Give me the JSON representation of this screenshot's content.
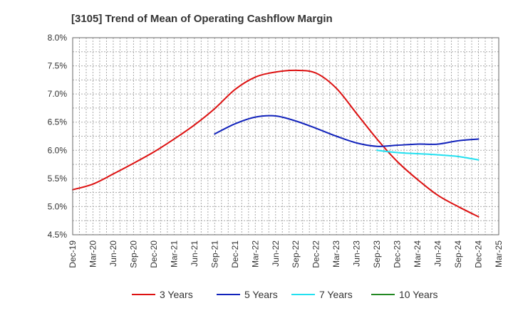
{
  "chart_data": {
    "type": "line",
    "title": "[3105]  Trend of Mean of Operating Cashflow Margin",
    "xlabel": "",
    "ylabel": "",
    "ylim": [
      4.5,
      8.0
    ],
    "y_ticks": [
      "4.5%",
      "5.0%",
      "5.5%",
      "6.0%",
      "6.5%",
      "7.0%",
      "7.5%",
      "8.0%"
    ],
    "y_tick_values": [
      4.5,
      5.0,
      5.5,
      6.0,
      6.5,
      7.0,
      7.5,
      8.0
    ],
    "categories": [
      "Dec-19",
      "Mar-20",
      "Jun-20",
      "Sep-20",
      "Dec-20",
      "Mar-21",
      "Jun-21",
      "Sep-21",
      "Dec-21",
      "Mar-22",
      "Jun-22",
      "Sep-22",
      "Dec-22",
      "Mar-23",
      "Jun-23",
      "Sep-23",
      "Dec-23",
      "Mar-24",
      "Jun-24",
      "Sep-24",
      "Dec-24",
      "Mar-25"
    ],
    "grid": true,
    "legend_position": "bottom",
    "series": [
      {
        "name": "3 Years",
        "color": "#dd1111",
        "values": [
          5.3,
          5.4,
          5.58,
          5.77,
          5.97,
          6.2,
          6.45,
          6.74,
          7.08,
          7.3,
          7.39,
          7.42,
          7.37,
          7.1,
          6.65,
          6.2,
          5.8,
          5.48,
          5.2,
          5.0,
          4.82,
          null
        ]
      },
      {
        "name": "5 Years",
        "color": "#1122bb",
        "values": [
          null,
          null,
          null,
          null,
          null,
          null,
          null,
          6.29,
          6.47,
          6.59,
          6.61,
          6.52,
          6.39,
          6.25,
          6.13,
          6.07,
          6.09,
          6.11,
          6.11,
          6.17,
          6.2,
          null
        ]
      },
      {
        "name": "7 Years",
        "color": "#22e0f0",
        "values": [
          null,
          null,
          null,
          null,
          null,
          null,
          null,
          null,
          null,
          null,
          null,
          null,
          null,
          null,
          null,
          6.0,
          5.96,
          5.94,
          5.92,
          5.89,
          5.83,
          null
        ]
      },
      {
        "name": "10 Years",
        "color": "#228822",
        "values": [
          null,
          null,
          null,
          null,
          null,
          null,
          null,
          null,
          null,
          null,
          null,
          null,
          null,
          null,
          null,
          null,
          null,
          null,
          null,
          null,
          null,
          null
        ]
      }
    ]
  }
}
